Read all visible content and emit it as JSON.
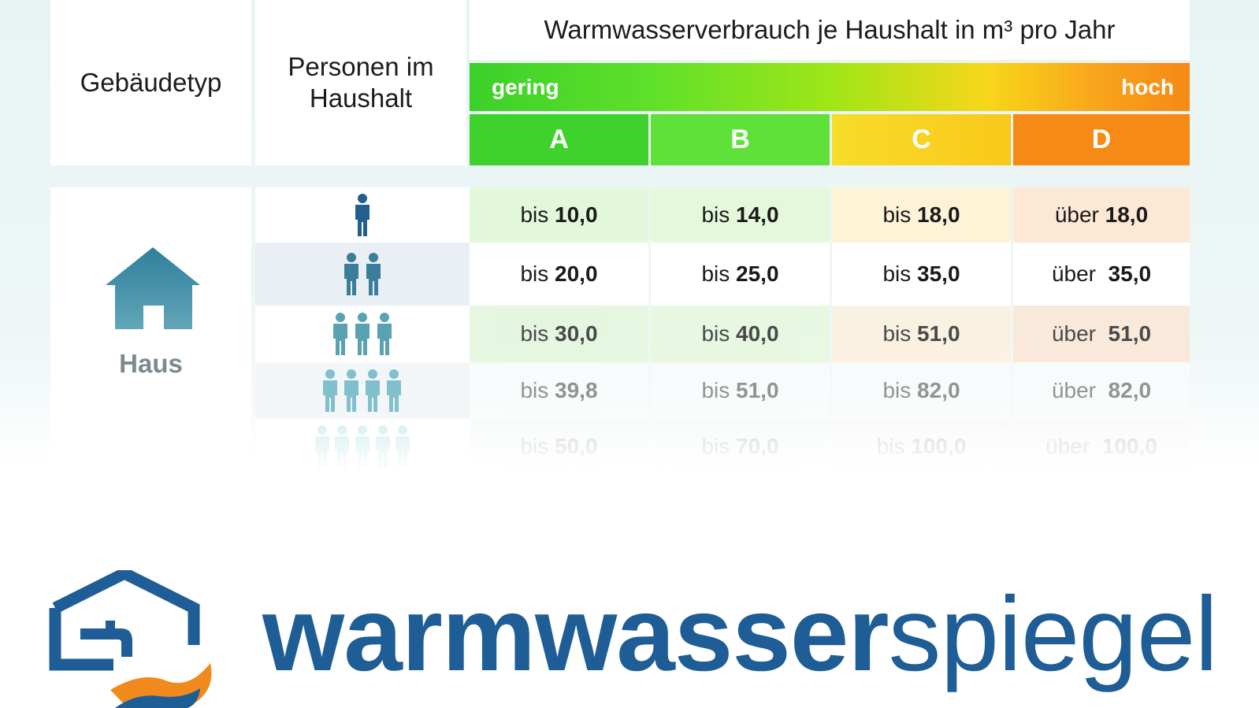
{
  "header": {
    "building_type_label": "Gebäudetyp",
    "persons_label_line1": "Personen im",
    "persons_label_line2": "Haushalt",
    "scale_title": "Warmwasserverbrauch je Haushalt in m³ pro Jahr",
    "scale_low": "gering",
    "scale_high": "hoch"
  },
  "classes": [
    {
      "label": "A",
      "color": "#3fd12c"
    },
    {
      "label": "B",
      "color": "#5fe13a"
    },
    {
      "label": "C",
      "color": "#f9d21a"
    },
    {
      "label": "D",
      "color": "#f58a14"
    }
  ],
  "building": {
    "label": "Haus",
    "icon": "house-icon"
  },
  "rows": [
    {
      "persons": 1,
      "cells": [
        {
          "prefix": "bis ",
          "value": "10,0"
        },
        {
          "prefix": "bis ",
          "value": "14,0"
        },
        {
          "prefix": "bis ",
          "value": "18,0"
        },
        {
          "prefix": "über ",
          "value": "18,0"
        }
      ]
    },
    {
      "persons": 2,
      "cells": [
        {
          "prefix": "bis ",
          "value": "20,0"
        },
        {
          "prefix": "bis ",
          "value": "25,0"
        },
        {
          "prefix": "bis ",
          "value": "35,0"
        },
        {
          "prefix": "über  ",
          "value": "35,0"
        }
      ]
    },
    {
      "persons": 3,
      "cells": [
        {
          "prefix": "bis ",
          "value": "30,0"
        },
        {
          "prefix": "bis ",
          "value": "40,0"
        },
        {
          "prefix": "bis ",
          "value": "51,0"
        },
        {
          "prefix": "über  ",
          "value": "51,0"
        }
      ]
    },
    {
      "persons": 4,
      "cells": [
        {
          "prefix": "bis ",
          "value": "39,8"
        },
        {
          "prefix": "bis ",
          "value": "51,0"
        },
        {
          "prefix": "bis ",
          "value": "82,0"
        },
        {
          "prefix": "über  ",
          "value": "82,0"
        }
      ]
    },
    {
      "persons": 5,
      "cells": [
        {
          "prefix": "bis ",
          "value": "50,0"
        },
        {
          "prefix": "bis ",
          "value": "70,0"
        },
        {
          "prefix": "bis ",
          "value": "100,0"
        },
        {
          "prefix": "über  ",
          "value": "100,0"
        }
      ]
    }
  ],
  "logo": {
    "word_bold": "warmwasser",
    "word_thin": "spiegel",
    "colors": {
      "blue": "#1e5d95",
      "orange": "#f08a1c"
    }
  },
  "colors": {
    "icon_teal": "#3f8ba3",
    "row_tint_green": "#e3f7db",
    "row_tint_yellow": "#fdf3d7",
    "row_tint_orange": "#fde8d6"
  }
}
